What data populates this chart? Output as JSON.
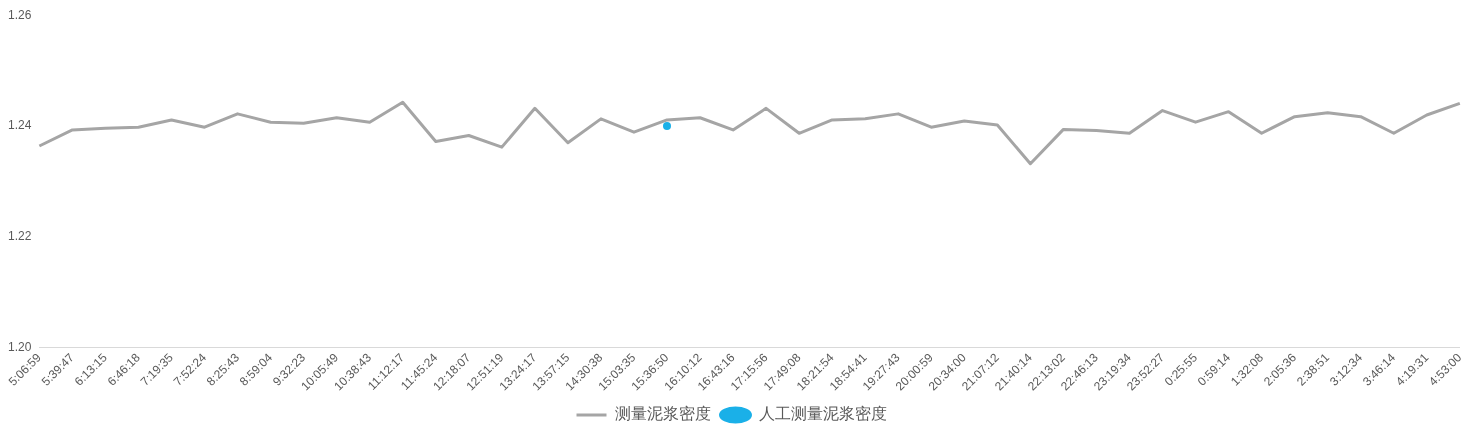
{
  "chart_data": {
    "type": "line",
    "categories": [
      "5:06:59",
      "5:39:47",
      "6:13:15",
      "6:46:18",
      "7:19:35",
      "7:52:24",
      "8:25:43",
      "8:59:04",
      "9:32:23",
      "10:05:49",
      "10:38:43",
      "11:12:17",
      "11:45:24",
      "12:18:07",
      "12:51:19",
      "13:24:17",
      "13:57:15",
      "14:30:38",
      "15:03:35",
      "15:36:50",
      "16:10:12",
      "16:43:16",
      "17:15:56",
      "17:49:08",
      "18:21:54",
      "18:54:41",
      "19:27:43",
      "20:00:59",
      "20:34:00",
      "21:07:12",
      "21:40:14",
      "22:13:02",
      "22:46:13",
      "23:19:34",
      "23:52:27",
      "0:25:55",
      "0:59:14",
      "1:32:08",
      "2:05:36",
      "2:38:51",
      "3:12:34",
      "3:46:14",
      "4:19:31",
      "4:53:00"
    ],
    "series": [
      {
        "name": "测量泥浆密度",
        "color": "#a5a5a5",
        "marker": "none",
        "values": [
          1.2364,
          1.2393,
          1.2396,
          1.2398,
          1.2411,
          1.2398,
          1.2422,
          1.2407,
          1.2405,
          1.2415,
          1.2407,
          1.2443,
          1.2372,
          1.2383,
          1.2362,
          1.2432,
          1.237,
          1.2413,
          1.2389,
          1.2411,
          1.2415,
          1.2393,
          1.2432,
          1.2387,
          1.2411,
          1.2413,
          1.2422,
          1.2398,
          1.2409,
          1.2402,
          1.2332,
          1.2394,
          1.2392,
          1.2387,
          1.2428,
          1.2407,
          1.2426,
          1.2387,
          1.2417,
          1.2424,
          1.2417,
          1.2387,
          1.242,
          1.2441
        ]
      },
      {
        "name": "人工测量泥浆密度",
        "color": "#1ab0e8",
        "marker": "circle",
        "values": [
          null,
          null,
          null,
          null,
          null,
          null,
          null,
          null,
          null,
          null,
          null,
          null,
          null,
          null,
          null,
          null,
          null,
          null,
          null,
          1.24,
          null,
          null,
          null,
          null,
          null,
          null,
          null,
          null,
          null,
          null,
          null,
          null,
          null,
          null,
          null,
          null,
          null,
          null,
          null,
          null,
          null,
          null,
          null,
          null
        ]
      }
    ],
    "ylim": [
      1.2,
      1.26
    ],
    "yticks": [
      {
        "value": 1.2,
        "label": "1.20"
      },
      {
        "value": 1.22,
        "label": "1.22"
      },
      {
        "value": 1.24,
        "label": "1.24"
      },
      {
        "value": 1.26,
        "label": "1.26"
      }
    ],
    "grid": false,
    "legend": "bottom"
  }
}
